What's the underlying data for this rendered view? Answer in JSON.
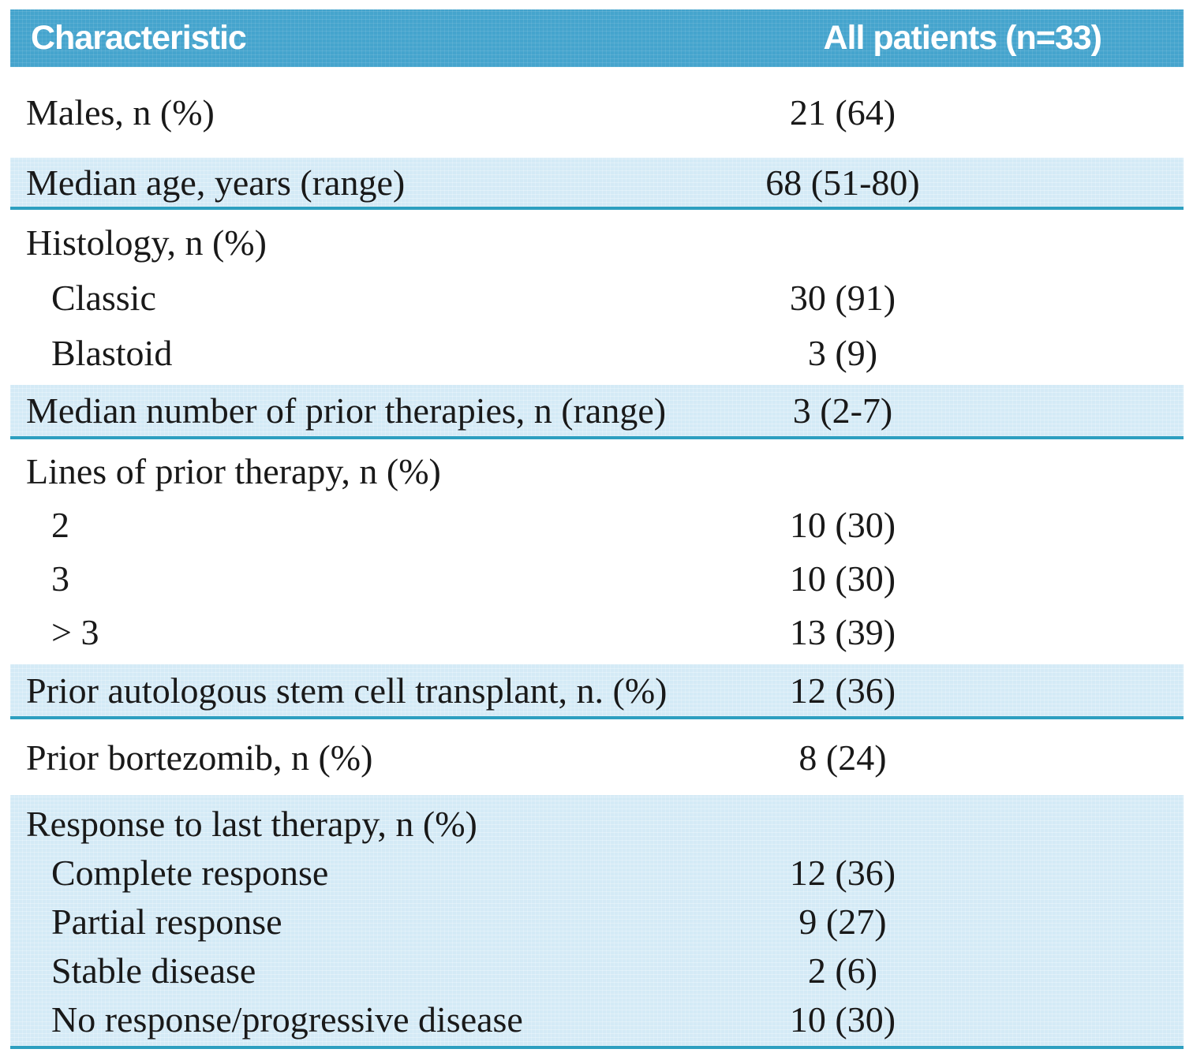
{
  "header": {
    "characteristic": "Characteristic",
    "all_patients": "All patients (n=33)"
  },
  "rows": [
    {
      "label": "Males, n (%)",
      "value": "21 (64)"
    },
    {
      "label": "Median age, years (range)",
      "value": "68 (51-80)"
    },
    {
      "label": "Histology, n (%)",
      "value": ""
    },
    {
      "label": "Classic",
      "value": "30 (91)"
    },
    {
      "label": "Blastoid",
      "value": "3 (9)"
    },
    {
      "label": "Median number of prior therapies, n (range)",
      "value": "3 (2-7)"
    },
    {
      "label": "Lines of prior therapy, n (%)",
      "value": ""
    },
    {
      "label": "2",
      "value": "10 (30)"
    },
    {
      "label": "3",
      "value": "10 (30)"
    },
    {
      "label": "> 3",
      "value": "13 (39)"
    },
    {
      "label": "Prior autologous stem cell transplant, n. (%)",
      "value": "12 (36)"
    },
    {
      "label": "Prior bortezomib, n (%)",
      "value": "8 (24)"
    },
    {
      "label": "Response to last therapy, n (%)",
      "value": ""
    },
    {
      "label": "Complete response",
      "value": "12 (36)"
    },
    {
      "label": "Partial response",
      "value": "9 (27)"
    },
    {
      "label": "Stable disease",
      "value": "2 (6)"
    },
    {
      "label": "No response/progressive disease",
      "value": "10 (30)"
    }
  ],
  "colors": {
    "header_bg": "#45a4cd",
    "row_bg_light_blue": "#d4eaf6",
    "divider_teal": "#2d9fc0",
    "text": "#191919",
    "header_text": "#ffffff"
  }
}
